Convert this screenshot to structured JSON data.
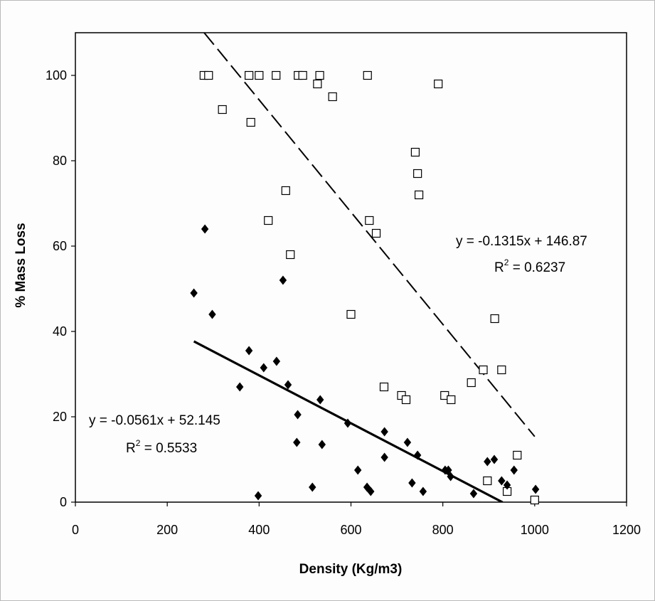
{
  "chart_data": {
    "type": "scatter",
    "xlabel": "Density (Kg/m3)",
    "ylabel": "% Mass Loss",
    "xlim": [
      0,
      1200
    ],
    "ylim": [
      0,
      100
    ],
    "x_ticks": [
      "0",
      "200",
      "400",
      "600",
      "800",
      "1000",
      "1200"
    ],
    "y_ticks": [
      "0",
      "20",
      "40",
      "60",
      "80",
      "100"
    ],
    "grid": false,
    "series": [
      {
        "marker": "hollow-square",
        "color": "#000000",
        "points": [
          [
            280,
            100
          ],
          [
            290,
            100
          ],
          [
            320,
            92
          ],
          [
            378,
            100
          ],
          [
            382,
            89
          ],
          [
            400,
            100
          ],
          [
            420,
            66
          ],
          [
            437,
            100
          ],
          [
            458,
            73
          ],
          [
            468,
            58
          ],
          [
            485,
            100
          ],
          [
            495,
            100
          ],
          [
            527,
            98
          ],
          [
            532,
            100
          ],
          [
            560,
            95
          ],
          [
            600,
            44
          ],
          [
            636,
            100
          ],
          [
            640,
            66
          ],
          [
            655,
            63
          ],
          [
            672,
            27
          ],
          [
            710,
            25
          ],
          [
            720,
            24
          ],
          [
            740,
            82
          ],
          [
            745,
            77
          ],
          [
            748,
            72
          ],
          [
            790,
            98
          ],
          [
            804,
            25
          ],
          [
            818,
            24
          ],
          [
            862,
            28
          ],
          [
            888,
            31
          ],
          [
            897,
            5
          ],
          [
            913,
            43
          ],
          [
            928,
            31
          ],
          [
            940,
            2.5
          ],
          [
            962,
            11
          ],
          [
            1000,
            0.5
          ]
        ],
        "trendline": {
          "slope": -0.1315,
          "intercept": 146.87,
          "x_range": [
            280,
            1000
          ],
          "style": "dashed"
        },
        "equation": "y = -0.1315x + 146.87",
        "r2_prefix": "R",
        "r2_exp": "2",
        "r2_value": " = 0.6237"
      },
      {
        "marker": "filled-diamond",
        "color": "#000000",
        "points": [
          [
            258,
            49
          ],
          [
            282,
            64
          ],
          [
            298,
            44
          ],
          [
            358,
            27
          ],
          [
            378,
            35.5
          ],
          [
            398,
            1.5
          ],
          [
            410,
            31.5
          ],
          [
            438,
            33
          ],
          [
            452,
            52
          ],
          [
            463,
            27.5
          ],
          [
            482,
            14
          ],
          [
            484,
            20.5
          ],
          [
            516,
            3.5
          ],
          [
            533,
            24
          ],
          [
            537,
            13.5
          ],
          [
            593,
            18.5
          ],
          [
            615,
            7.5
          ],
          [
            635,
            3.5
          ],
          [
            643,
            2.5
          ],
          [
            673,
            16.5
          ],
          [
            673,
            10.5
          ],
          [
            723,
            14
          ],
          [
            733,
            4.5
          ],
          [
            745,
            11
          ],
          [
            757,
            2.5
          ],
          [
            805,
            7.5
          ],
          [
            812,
            7.5
          ],
          [
            817,
            6
          ],
          [
            867,
            2
          ],
          [
            897,
            9.5
          ],
          [
            912,
            10
          ],
          [
            928,
            5
          ],
          [
            940,
            4
          ],
          [
            955,
            7.5
          ],
          [
            1002,
            3
          ]
        ],
        "trendline": {
          "slope": -0.0561,
          "intercept": 52.145,
          "x_range": [
            258,
            930
          ],
          "style": "solid"
        },
        "equation": "y = -0.0561x + 52.145",
        "r2_prefix": "R",
        "r2_exp": "2",
        "r2_value": " = 0.5533"
      }
    ]
  }
}
